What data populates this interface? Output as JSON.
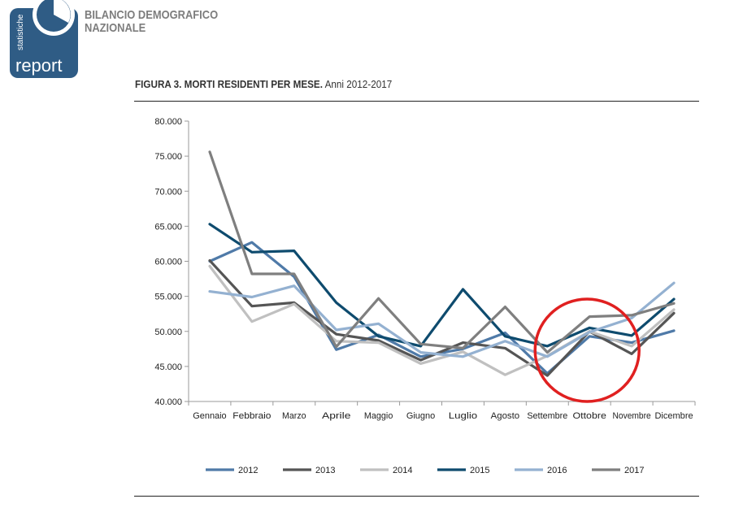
{
  "brand": {
    "logo_vertical_text": "statistiche",
    "logo_word": "report",
    "publication_title_line1": "BILANCIO DEMOGRAFICO",
    "publication_title_line2": "NAZIONALE"
  },
  "figure": {
    "title_bold": "FIGURA 3. MORTI RESIDENTI PER MESE.",
    "title_rest": " Anni 2012-2017"
  },
  "chart_data": {
    "type": "line",
    "title": "FIGURA 3. MORTI RESIDENTI PER MESE. Anni 2012-2017",
    "xlabel": "",
    "ylabel": "",
    "categories": [
      "Gennaio",
      "Febbraio",
      "Marzo",
      "Aprile",
      "Maggio",
      "Giugno",
      "Luglio",
      "Agosto",
      "Settembre",
      "Ottobre",
      "Novembre",
      "Dicembre"
    ],
    "ylim": [
      40000,
      80000
    ],
    "yticks": [
      40000,
      45000,
      50000,
      55000,
      60000,
      65000,
      70000,
      75000,
      80000
    ],
    "ytick_labels": [
      "40.000",
      "45.000",
      "50.000",
      "55.000",
      "60.000",
      "65.000",
      "70.000",
      "75.000",
      "80.000"
    ],
    "grid": false,
    "legend_position": "bottom",
    "series": [
      {
        "name": "2012",
        "color": "#4f7aa8",
        "values": [
          60000,
          62700,
          57800,
          47400,
          49500,
          46400,
          47500,
          49800,
          44000,
          49300,
          48400,
          50100
        ]
      },
      {
        "name": "2013",
        "color": "#555555",
        "values": [
          60100,
          53600,
          54100,
          49600,
          48700,
          45900,
          48400,
          47600,
          43700,
          50000,
          46800,
          52600
        ]
      },
      {
        "name": "2014",
        "color": "#c0c0c0",
        "values": [
          59300,
          51400,
          53900,
          48600,
          48400,
          45400,
          47100,
          43800,
          46500,
          50000,
          47900,
          53100
        ]
      },
      {
        "name": "2015",
        "color": "#0e4b6e",
        "values": [
          65300,
          61300,
          61500,
          54100,
          49300,
          47900,
          56000,
          49300,
          47900,
          50500,
          49400,
          54600
        ]
      },
      {
        "name": "2016",
        "color": "#94b1d1",
        "values": [
          55700,
          54900,
          56500,
          50200,
          51100,
          47000,
          46400,
          48600,
          46400,
          49900,
          51900,
          56900
        ]
      },
      {
        "name": "2017",
        "color": "#7f7f7f",
        "values": [
          75600,
          58200,
          58200,
          47800,
          54700,
          48200,
          47600,
          53500,
          47000,
          52100,
          52300,
          54000
        ]
      }
    ]
  },
  "annotation": {
    "type": "circle-highlight",
    "color": "#e02020",
    "category_index": 9,
    "value": 48000
  }
}
